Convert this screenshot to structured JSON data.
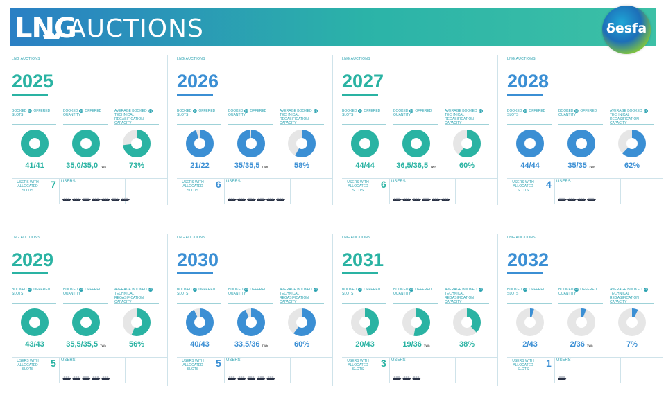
{
  "header": {
    "title_short": "LNG",
    "title_rest": "AUCTIONS",
    "logo_text": "δesfa"
  },
  "colors": {
    "teal": "#2ab3a3",
    "blue": "#3b8fd4",
    "grey": "#e6e6e6",
    "ship": "#2b3346"
  },
  "section_label": "LNG AUCTIONS",
  "metric_headers": {
    "slots": {
      "a": "BOOKED",
      "vs": "VS",
      "b": "OFFERED SLOTS"
    },
    "quantity": {
      "a": "BOOKED",
      "vs": "VS",
      "b": "OFFERED QUANTITY"
    },
    "capacity": {
      "a": "AVERAGE BOOKED",
      "vs": "VS",
      "b": "TECHNICAL REGASIFICATION CAPACITY"
    }
  },
  "users_label": "USERS WITH ALLOCATED SLOTS",
  "users_box_label": "USERS",
  "unit_twh": "TWh",
  "cards": [
    {
      "year": "2025",
      "accent": "#2ab3a3",
      "slots": "41/41",
      "slots_frac": 1.0,
      "quantity": "35,0/35,0",
      "quantity_frac": 1.0,
      "capacity": "73%",
      "capacity_frac": 0.73,
      "users": "7"
    },
    {
      "year": "2026",
      "accent": "#3b8fd4",
      "slots": "21/22",
      "slots_frac": 0.955,
      "quantity": "35/35,5",
      "quantity_frac": 0.986,
      "capacity": "58%",
      "capacity_frac": 0.58,
      "users": "6"
    },
    {
      "year": "2027",
      "accent": "#2ab3a3",
      "slots": "44/44",
      "slots_frac": 1.0,
      "quantity": "36,5/36,5",
      "quantity_frac": 1.0,
      "capacity": "60%",
      "capacity_frac": 0.6,
      "users": "6"
    },
    {
      "year": "2028",
      "accent": "#3b8fd4",
      "slots": "44/44",
      "slots_frac": 1.0,
      "quantity": "35/35",
      "quantity_frac": 1.0,
      "capacity": "62%",
      "capacity_frac": 0.62,
      "users": "4"
    },
    {
      "year": "2029",
      "accent": "#2ab3a3",
      "slots": "43/43",
      "slots_frac": 1.0,
      "quantity": "35,5/35,5",
      "quantity_frac": 1.0,
      "capacity": "56%",
      "capacity_frac": 0.56,
      "users": "5"
    },
    {
      "year": "2030",
      "accent": "#3b8fd4",
      "slots": "40/43",
      "slots_frac": 0.93,
      "quantity": "33,5/36",
      "quantity_frac": 0.93,
      "capacity": "60%",
      "capacity_frac": 0.6,
      "users": "5"
    },
    {
      "year": "2031",
      "accent": "#2ab3a3",
      "slots": "20/43",
      "slots_frac": 0.465,
      "quantity": "19/36",
      "quantity_frac": 0.528,
      "capacity": "38%",
      "capacity_frac": 0.38,
      "users": "3"
    },
    {
      "year": "2032",
      "accent": "#3b8fd4",
      "slots": "2/43",
      "slots_frac": 0.047,
      "quantity": "2/36",
      "quantity_frac": 0.056,
      "capacity": "7%",
      "capacity_frac": 0.07,
      "users": "1"
    }
  ]
}
